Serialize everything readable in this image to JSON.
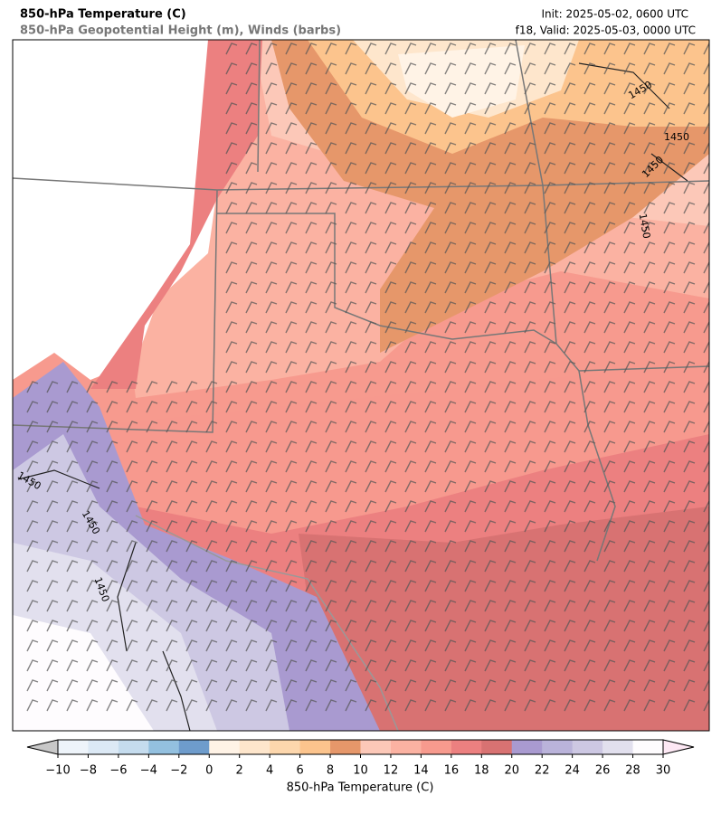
{
  "header": {
    "title": "850-hPa Temperature (C)",
    "subtitle": "850-hPa Geopotential Height (m), Winds (barbs)",
    "init": "Init: 2025-05-02, 0600 UTC",
    "valid": "f18, Valid: 2025-05-03, 0000 UTC"
  },
  "contour_labels": [
    "1450",
    "1450",
    "1450",
    "1450",
    "1450",
    "1450",
    "1450"
  ],
  "colorbar": {
    "label": "850-hPa Temperature (C)",
    "ticks": [
      {
        "value": -10,
        "label": "−10"
      },
      {
        "value": -8,
        "label": "−8"
      },
      {
        "value": -6,
        "label": "−6"
      },
      {
        "value": -4,
        "label": "−4"
      },
      {
        "value": -2,
        "label": "−2"
      },
      0,
      2,
      4,
      6,
      8,
      10,
      12,
      14,
      16,
      18,
      20,
      22,
      24,
      26,
      28,
      30
    ],
    "colors": [
      "#eef4fa",
      "#dce9f5",
      "#c5dcee",
      "#93c0df",
      "#6e9ccc",
      "#fff3e6",
      "#fee6cc",
      "#fdd7ad",
      "#fcc48d",
      "#e6976a",
      "#fcc8b8",
      "#fbb2a2",
      "#f79a8e",
      "#ec8080",
      "#d87272",
      "#a99ad0",
      "#bab3da",
      "#cdc8e3",
      "#e2e0ee",
      "#fefcfe"
    ],
    "under": "#c8c8c8",
    "over": "#fde8f4"
  }
}
